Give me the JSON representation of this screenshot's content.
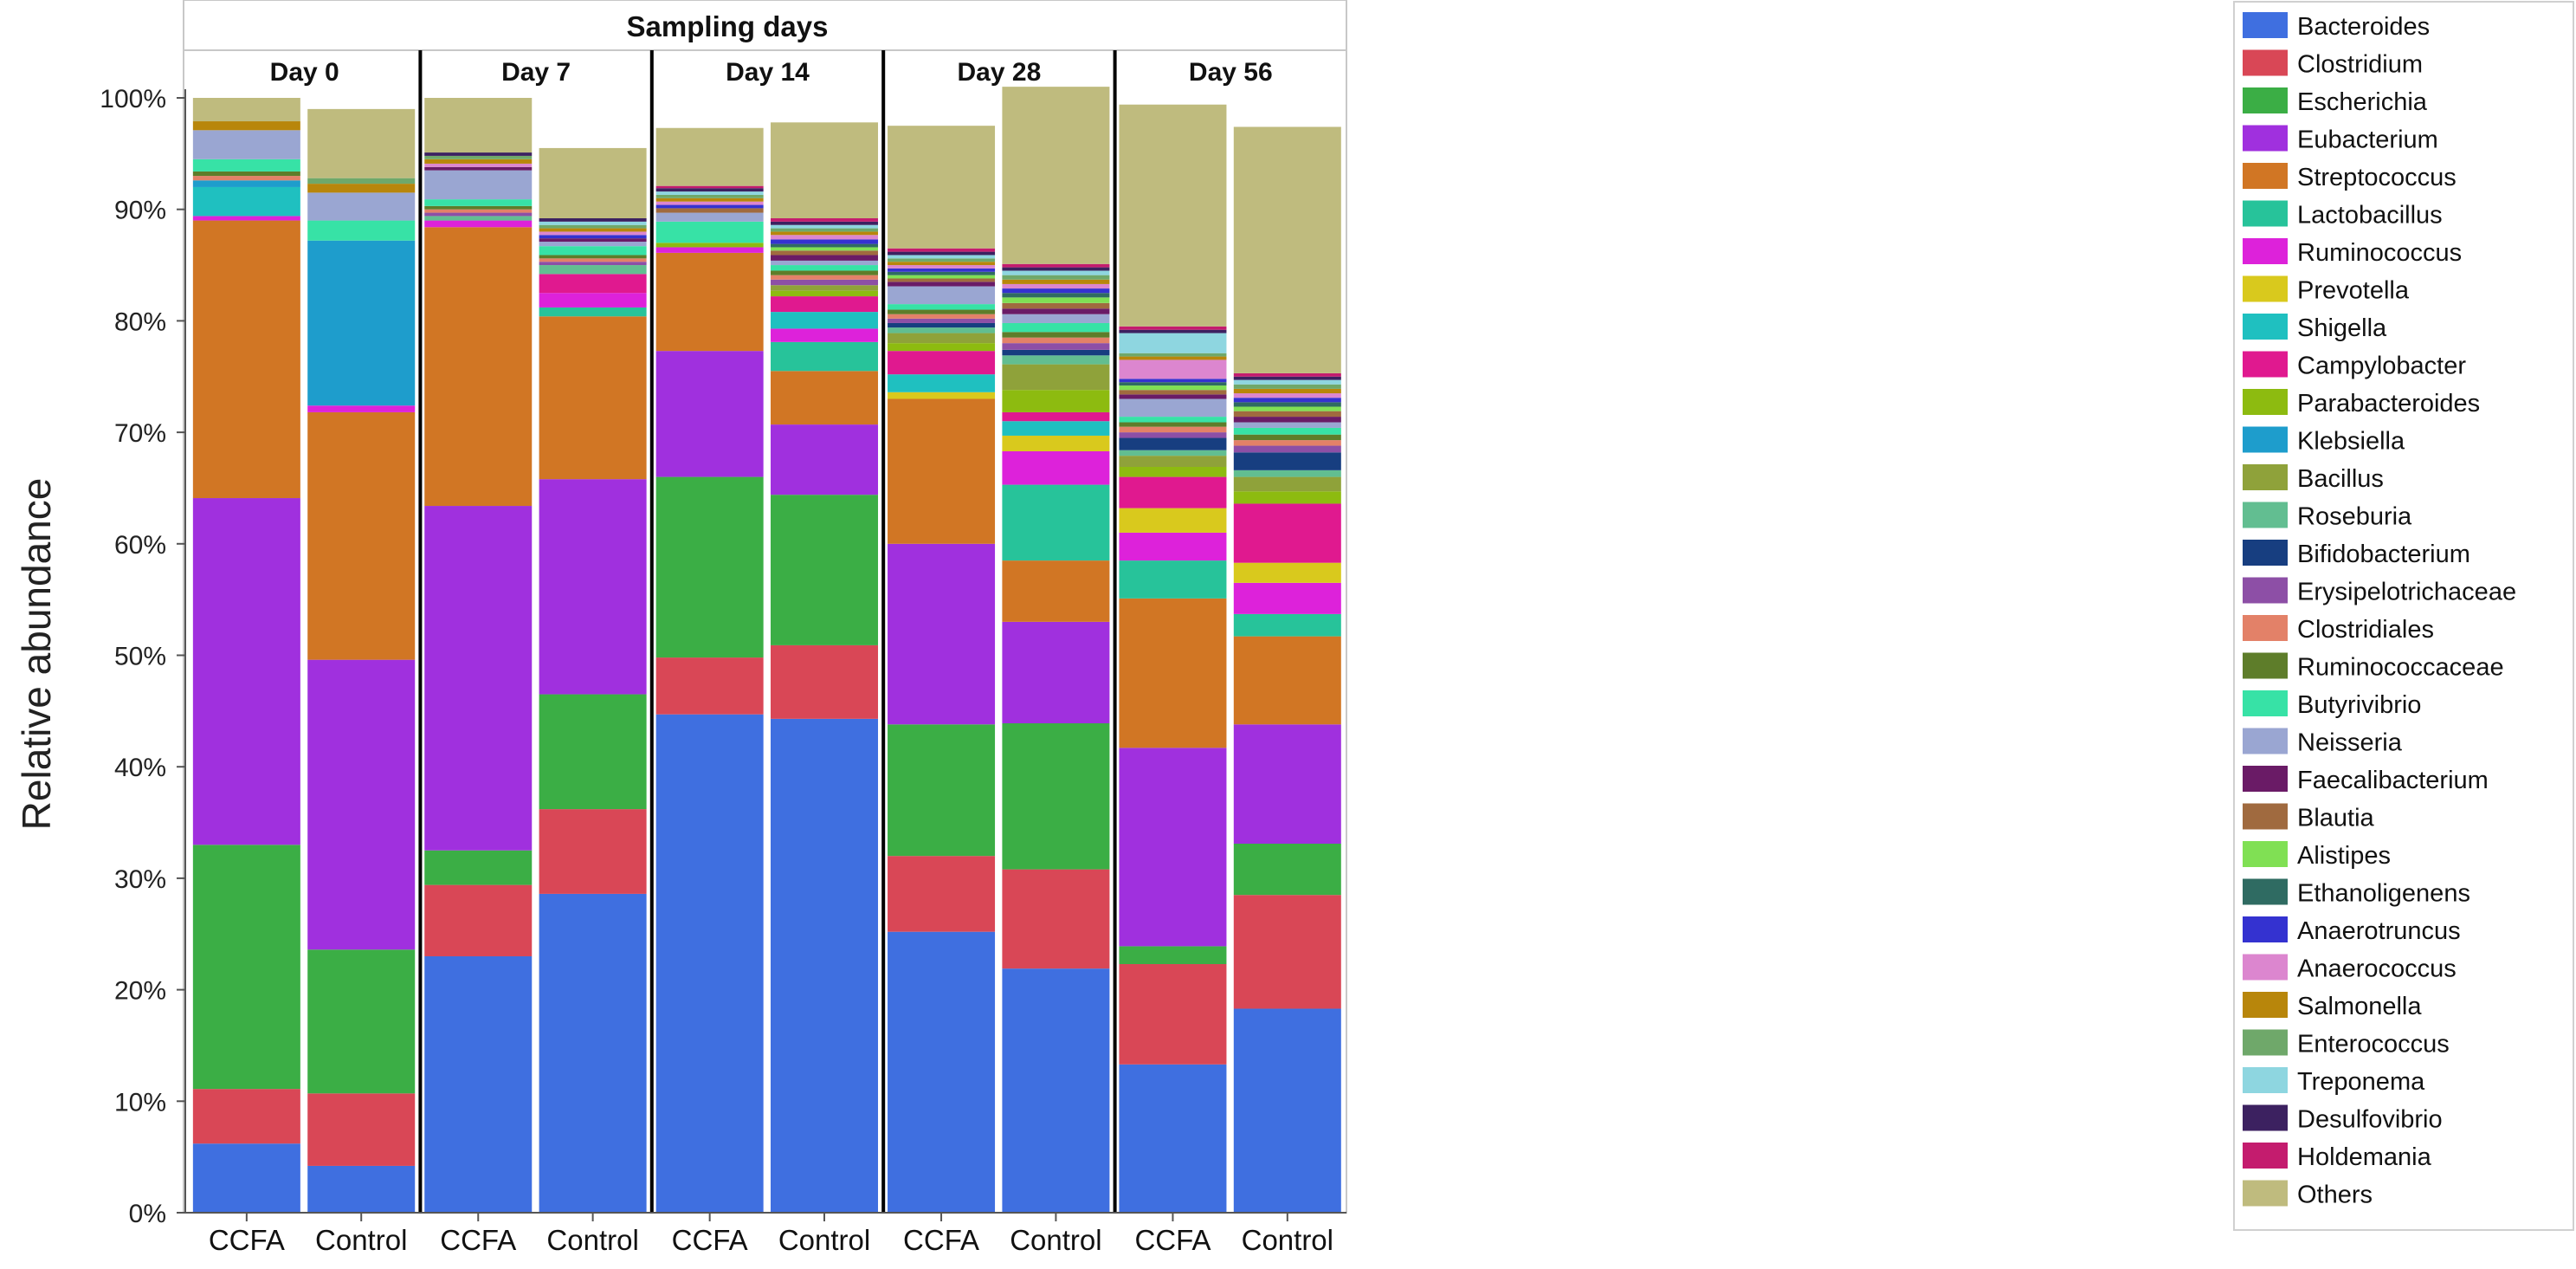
{
  "chart_data": {
    "type": "bar",
    "stacked": true,
    "title": "Sampling days",
    "ylabel": "Relative abundance",
    "xlabel": "",
    "ylim": [
      0,
      100
    ],
    "ytick_labels": [
      "0%",
      "10%",
      "20%",
      "30%",
      "40%",
      "50%",
      "60%",
      "70%",
      "80%",
      "90%",
      "100%"
    ],
    "groups": [
      "Day 0",
      "Day 7",
      "Day 14",
      "Day 28",
      "Day 56"
    ],
    "categories": [
      "CCFA",
      "Control",
      "CCFA",
      "Control",
      "CCFA",
      "Control",
      "CCFA",
      "Control",
      "CCFA",
      "Control"
    ],
    "legend_position": "right",
    "series": [
      {
        "name": "Bacteroides",
        "color": "#3F6FE0",
        "values": [
          6.2,
          4.2,
          23.0,
          28.6,
          44.7,
          44.3,
          25.2,
          21.9,
          13.3,
          18.3
        ]
      },
      {
        "name": "Clostridium",
        "color": "#D94756",
        "values": [
          4.9,
          6.5,
          6.4,
          7.6,
          5.1,
          6.6,
          6.8,
          8.9,
          9.0,
          10.2
        ]
      },
      {
        "name": "Escherichia",
        "color": "#3BAE45",
        "values": [
          21.9,
          12.9,
          3.1,
          10.3,
          16.2,
          13.5,
          11.8,
          13.1,
          1.6,
          4.6
        ]
      },
      {
        "name": "Eubacterium",
        "color": "#A030DE",
        "values": [
          31.1,
          26.0,
          30.9,
          19.3,
          11.3,
          6.3,
          16.2,
          9.1,
          17.8,
          10.7
        ]
      },
      {
        "name": "Streptococcus",
        "color": "#D17624",
        "values": [
          24.9,
          22.2,
          25.0,
          14.6,
          8.8,
          4.8,
          13.0,
          5.5,
          13.4,
          7.9
        ]
      },
      {
        "name": "Lactobacillus",
        "color": "#27C39A",
        "values": [
          0.0,
          0.0,
          0.0,
          0.8,
          0.0,
          2.6,
          0.0,
          6.8,
          3.4,
          2.0
        ]
      },
      {
        "name": "Ruminococcus",
        "color": "#DD22DA",
        "values": [
          0.4,
          0.6,
          0.6,
          1.3,
          0.5,
          1.2,
          0.0,
          3.0,
          2.5,
          2.8
        ]
      },
      {
        "name": "Prevotella",
        "color": "#D9C91D",
        "values": [
          0.0,
          0.0,
          0.0,
          0.0,
          0.0,
          0.0,
          0.6,
          1.4,
          2.2,
          1.8
        ]
      },
      {
        "name": "Shigella",
        "color": "#1FC0C0",
        "values": [
          2.6,
          0.0,
          0.0,
          0.0,
          0.0,
          1.5,
          1.6,
          1.3,
          0.0,
          0.0
        ]
      },
      {
        "name": "Campylobacter",
        "color": "#E0198F",
        "values": [
          0.0,
          0.0,
          0.0,
          1.7,
          0.0,
          1.4,
          2.1,
          0.8,
          2.8,
          5.3
        ]
      },
      {
        "name": "Parabacteroides",
        "color": "#8DBB10",
        "values": [
          0.0,
          0.0,
          0.0,
          0.0,
          0.4,
          0.5,
          0.7,
          2.0,
          0.9,
          1.1
        ]
      },
      {
        "name": "Klebsiella",
        "color": "#1E9DCC",
        "values": [
          0.6,
          14.8,
          0.0,
          0.0,
          0.0,
          0.0,
          0.0,
          0.0,
          0.0,
          0.0
        ]
      },
      {
        "name": "Bacillus",
        "color": "#8FA23A",
        "values": [
          0.0,
          0.0,
          0.0,
          0.0,
          0.0,
          0.5,
          0.9,
          2.3,
          1.0,
          1.3
        ]
      },
      {
        "name": "Roseburia",
        "color": "#62BE91",
        "values": [
          0.0,
          0.0,
          0.4,
          0.8,
          0.0,
          0.0,
          0.5,
          0.8,
          0.5,
          0.6
        ]
      },
      {
        "name": "Bifidobacterium",
        "color": "#173E80",
        "values": [
          0.0,
          0.0,
          0.0,
          0.0,
          0.0,
          0.0,
          0.4,
          0.5,
          1.1,
          1.6
        ]
      },
      {
        "name": "Erysipelotrichaceae",
        "legend_label": " Erysipelotrichaceae",
        "color": "#8D4FA6",
        "values": [
          0.0,
          0.0,
          0.3,
          0.3,
          0.0,
          0.5,
          0.4,
          0.6,
          0.5,
          0.6
        ]
      },
      {
        "name": "Clostridiales",
        "color": "#E38168",
        "values": [
          0.4,
          0.0,
          0.3,
          0.3,
          0.0,
          0.4,
          0.4,
          0.5,
          0.5,
          0.5
        ]
      },
      {
        "name": "Ruminococcaceae",
        "color": "#5E7D2A",
        "values": [
          0.4,
          0.0,
          0.3,
          0.3,
          0.0,
          0.4,
          0.4,
          0.5,
          0.4,
          0.5
        ]
      },
      {
        "name": "Butyrivibrio",
        "color": "#37E2A6",
        "values": [
          1.1,
          1.8,
          0.6,
          0.8,
          1.9,
          0.5,
          0.5,
          0.8,
          0.5,
          0.6
        ]
      },
      {
        "name": "Neisseria",
        "color": "#9AA6D2",
        "values": [
          2.6,
          2.5,
          2.6,
          0.4,
          0.8,
          0.4,
          1.6,
          0.8,
          1.6,
          0.5
        ]
      },
      {
        "name": "Faecalibacterium",
        "color": "#6A1B66",
        "values": [
          0.0,
          0.0,
          0.3,
          0.3,
          0.0,
          0.5,
          0.4,
          0.5,
          0.4,
          0.5
        ]
      },
      {
        "name": "Blautia",
        "color": "#A06A3F",
        "values": [
          0.0,
          0.0,
          0.0,
          0.0,
          0.4,
          0.4,
          0.3,
          0.5,
          0.4,
          0.5
        ]
      },
      {
        "name": "Alistipes",
        "color": "#80E054",
        "values": [
          0.0,
          0.0,
          0.0,
          0.0,
          0.0,
          0.3,
          0.3,
          0.5,
          0.4,
          0.4
        ]
      },
      {
        "name": "Ethanoligenens",
        "color": "#2F6B62",
        "values": [
          0.0,
          0.0,
          0.0,
          0.0,
          0.0,
          0.3,
          0.3,
          0.4,
          0.3,
          0.4
        ]
      },
      {
        "name": "Anaerotruncus",
        "color": "#3432D0",
        "values": [
          0.0,
          0.0,
          0.0,
          0.3,
          0.3,
          0.4,
          0.3,
          0.4,
          0.3,
          0.4
        ]
      },
      {
        "name": "Anaerococcus",
        "color": "#DC86CF",
        "values": [
          0.0,
          0.0,
          0.3,
          0.3,
          0.3,
          0.4,
          0.3,
          0.4,
          1.7,
          0.4
        ]
      },
      {
        "name": "Salmonella",
        "color": "#B8860B",
        "values": [
          0.8,
          0.8,
          0.4,
          0.3,
          0.3,
          0.3,
          0.3,
          0.4,
          0.3,
          0.4
        ]
      },
      {
        "name": "Enterococcus",
        "color": "#6FA86A",
        "values": [
          0.0,
          0.5,
          0.3,
          0.3,
          0.3,
          0.3,
          0.3,
          0.4,
          0.3,
          0.4
        ]
      },
      {
        "name": "Treponema",
        "color": "#8ED6E0",
        "values": [
          0.0,
          0.0,
          0.0,
          0.3,
          0.3,
          0.3,
          0.3,
          0.4,
          1.8,
          0.4
        ]
      },
      {
        "name": "Desulfovibrio",
        "color": "#3C2160",
        "values": [
          0.0,
          0.0,
          0.3,
          0.3,
          0.3,
          0.3,
          0.3,
          0.3,
          0.3,
          0.3
        ]
      },
      {
        "name": "Holdemania",
        "color": "#C41C6E",
        "values": [
          0.0,
          0.0,
          0.0,
          0.0,
          0.2,
          0.3,
          0.3,
          0.3,
          0.3,
          0.3
        ]
      },
      {
        "name": "Others",
        "color": "#BFBB7E",
        "values": [
          2.1,
          6.2,
          4.9,
          6.3,
          5.2,
          8.6,
          11.0,
          15.9,
          19.9,
          22.1
        ]
      }
    ]
  }
}
